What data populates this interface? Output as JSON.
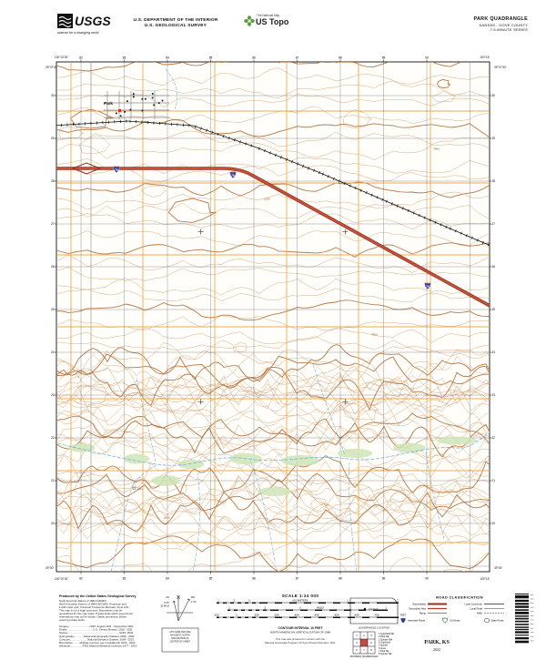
{
  "header": {
    "usgs": {
      "name": "USGS",
      "tagline": "science for a changing world"
    },
    "department": [
      "U.S. DEPARTMENT OF THE INTERIOR",
      "U.S. GEOLOGICAL SURVEY"
    ],
    "ustopo": {
      "brand": "The National Map",
      "product": "US Topo"
    },
    "quadrangle": {
      "title": "PARK QUADRANGLE",
      "region": "KANSAS - GOVE COUNTY",
      "series": "7.5-MINUTE SERIES"
    }
  },
  "map": {
    "town": "Park",
    "interstate": "70",
    "cemetery": "Cem",
    "contour_labels": [
      "2700",
      "2650",
      "2600",
      "2680"
    ],
    "corners": {
      "nw_lon": "100°22'30\"",
      "nw_lat": "39°07'30\"",
      "ne_lon": "100°15'",
      "ne_lat": "39°07'30\"",
      "sw_lon": "100°22'30\"",
      "sw_lat": "39°00'",
      "se_lon": "100°15'",
      "se_lat": "39°00'"
    },
    "top_eastings": [
      "82",
      "83",
      "84",
      "85",
      "86",
      "87",
      "88",
      "89",
      "90"
    ],
    "bottom_eastings": [
      "82",
      "83",
      "84",
      "85",
      "86",
      "87",
      "88",
      "89",
      "90"
    ],
    "left_northings": [
      "30",
      "29",
      "28",
      "27",
      "26",
      "25",
      "24",
      "23",
      "22",
      "21",
      "20"
    ],
    "right_northings": [
      "30",
      "29",
      "28",
      "27",
      "26",
      "25",
      "24",
      "23",
      "22",
      "21",
      "20"
    ]
  },
  "footer": {
    "produced_by": "Produced by the United States Geological Survey",
    "fineprint": [
      "North American Datum of 1983 (NAD83)",
      "World Geodetic System of 1984 (WGS84). Projection and",
      "1 000-meter grid: Universal Transverse Mercator, Zone 14S",
      "This map is not a legal document. Boundaries may be",
      "generalized for this map scale. Private lands within government",
      "reservations may not be shown. Obtain permission before",
      "entering private lands."
    ],
    "sources": [
      "Imagery.............................NAIP, August 2021 - September 2021",
      "Roads....................................U.S. Census Bureau, 2016 - 2021",
      "Names.......................................................................GNIS, 2022",
      "Hydrography.............National Hydrography Dataset, 2009 - 2022",
      "Contours........................National Elevation Dataset, 2009 - 2022",
      "Boundaries..........Multiple sources; see metadata file 2015 - 2022",
      "Wetlands.................FWS National Wetlands Inventory 1977 - 2014"
    ],
    "declination": {
      "gn": "GN",
      "mn": "MN",
      "gn_value": "0°16'",
      "mils": "30 MILS",
      "mn_value": "1°41'",
      "caption": [
        "UTM GRID AND 2022",
        "MAGNETIC NORTH",
        "DECLINATION AT",
        "CENTER OF SHEET"
      ]
    },
    "scale": {
      "title": "SCALE 1:24 000",
      "km_label": "KILOMETERS",
      "miles_label": "MILES",
      "feet_label": "FEET",
      "km_ticks": [
        "1",
        ".5",
        "0",
        "1",
        "2"
      ],
      "mile_ticks": [
        "1",
        ".5",
        "0",
        "1"
      ],
      "feet_ticks": [
        "1000",
        "0",
        "1000",
        "2000",
        "3000",
        "4000",
        "5000",
        "6000",
        "7000"
      ],
      "contour_interval": "CONTOUR INTERVAL 10 FEET",
      "datum": "NORTH AMERICAN VERTICAL DATUM OF 1988",
      "standard": [
        "This map was produced to conform with the",
        "National Geospatial Program US Topo Product Standard, 2011."
      ]
    },
    "location": {
      "state": "KANSAS",
      "caption": "QUADRANGLE LOCATION",
      "adjoining_caption": "ADJOINING QUADRANGLES",
      "adjoining": [
        "Grainfield NE",
        "Park NE",
        "Quinter NW",
        "Grainfield",
        "Quinter",
        "Gove",
        "Park SE",
        "Quinter SE"
      ]
    },
    "roads": {
      "title": "ROAD CLASSIFICATION",
      "rows": [
        {
          "left": "Expressway",
          "right": "Local Connector"
        },
        {
          "left": "Secondary Hwy",
          "right": "Local Road"
        },
        {
          "left": "Ramp",
          "right": "4WD"
        }
      ],
      "shields": [
        "Interstate Route",
        "US Route",
        "State Route"
      ]
    },
    "sheet": {
      "name": "PARK, KS",
      "year": "2022"
    }
  },
  "colors": {
    "contour": "#d49c6a",
    "contour_index": "#b4723c",
    "section_grid": "#eda33b",
    "utm_grid": "#3c3c3c",
    "highway_casing": "#8f2f1e",
    "highway_fill": "#c2523a",
    "water": "#6fb1d6",
    "veg": "#cfe5b8",
    "shield_blue": "#2e3d99",
    "red_feature": "#d93025"
  }
}
